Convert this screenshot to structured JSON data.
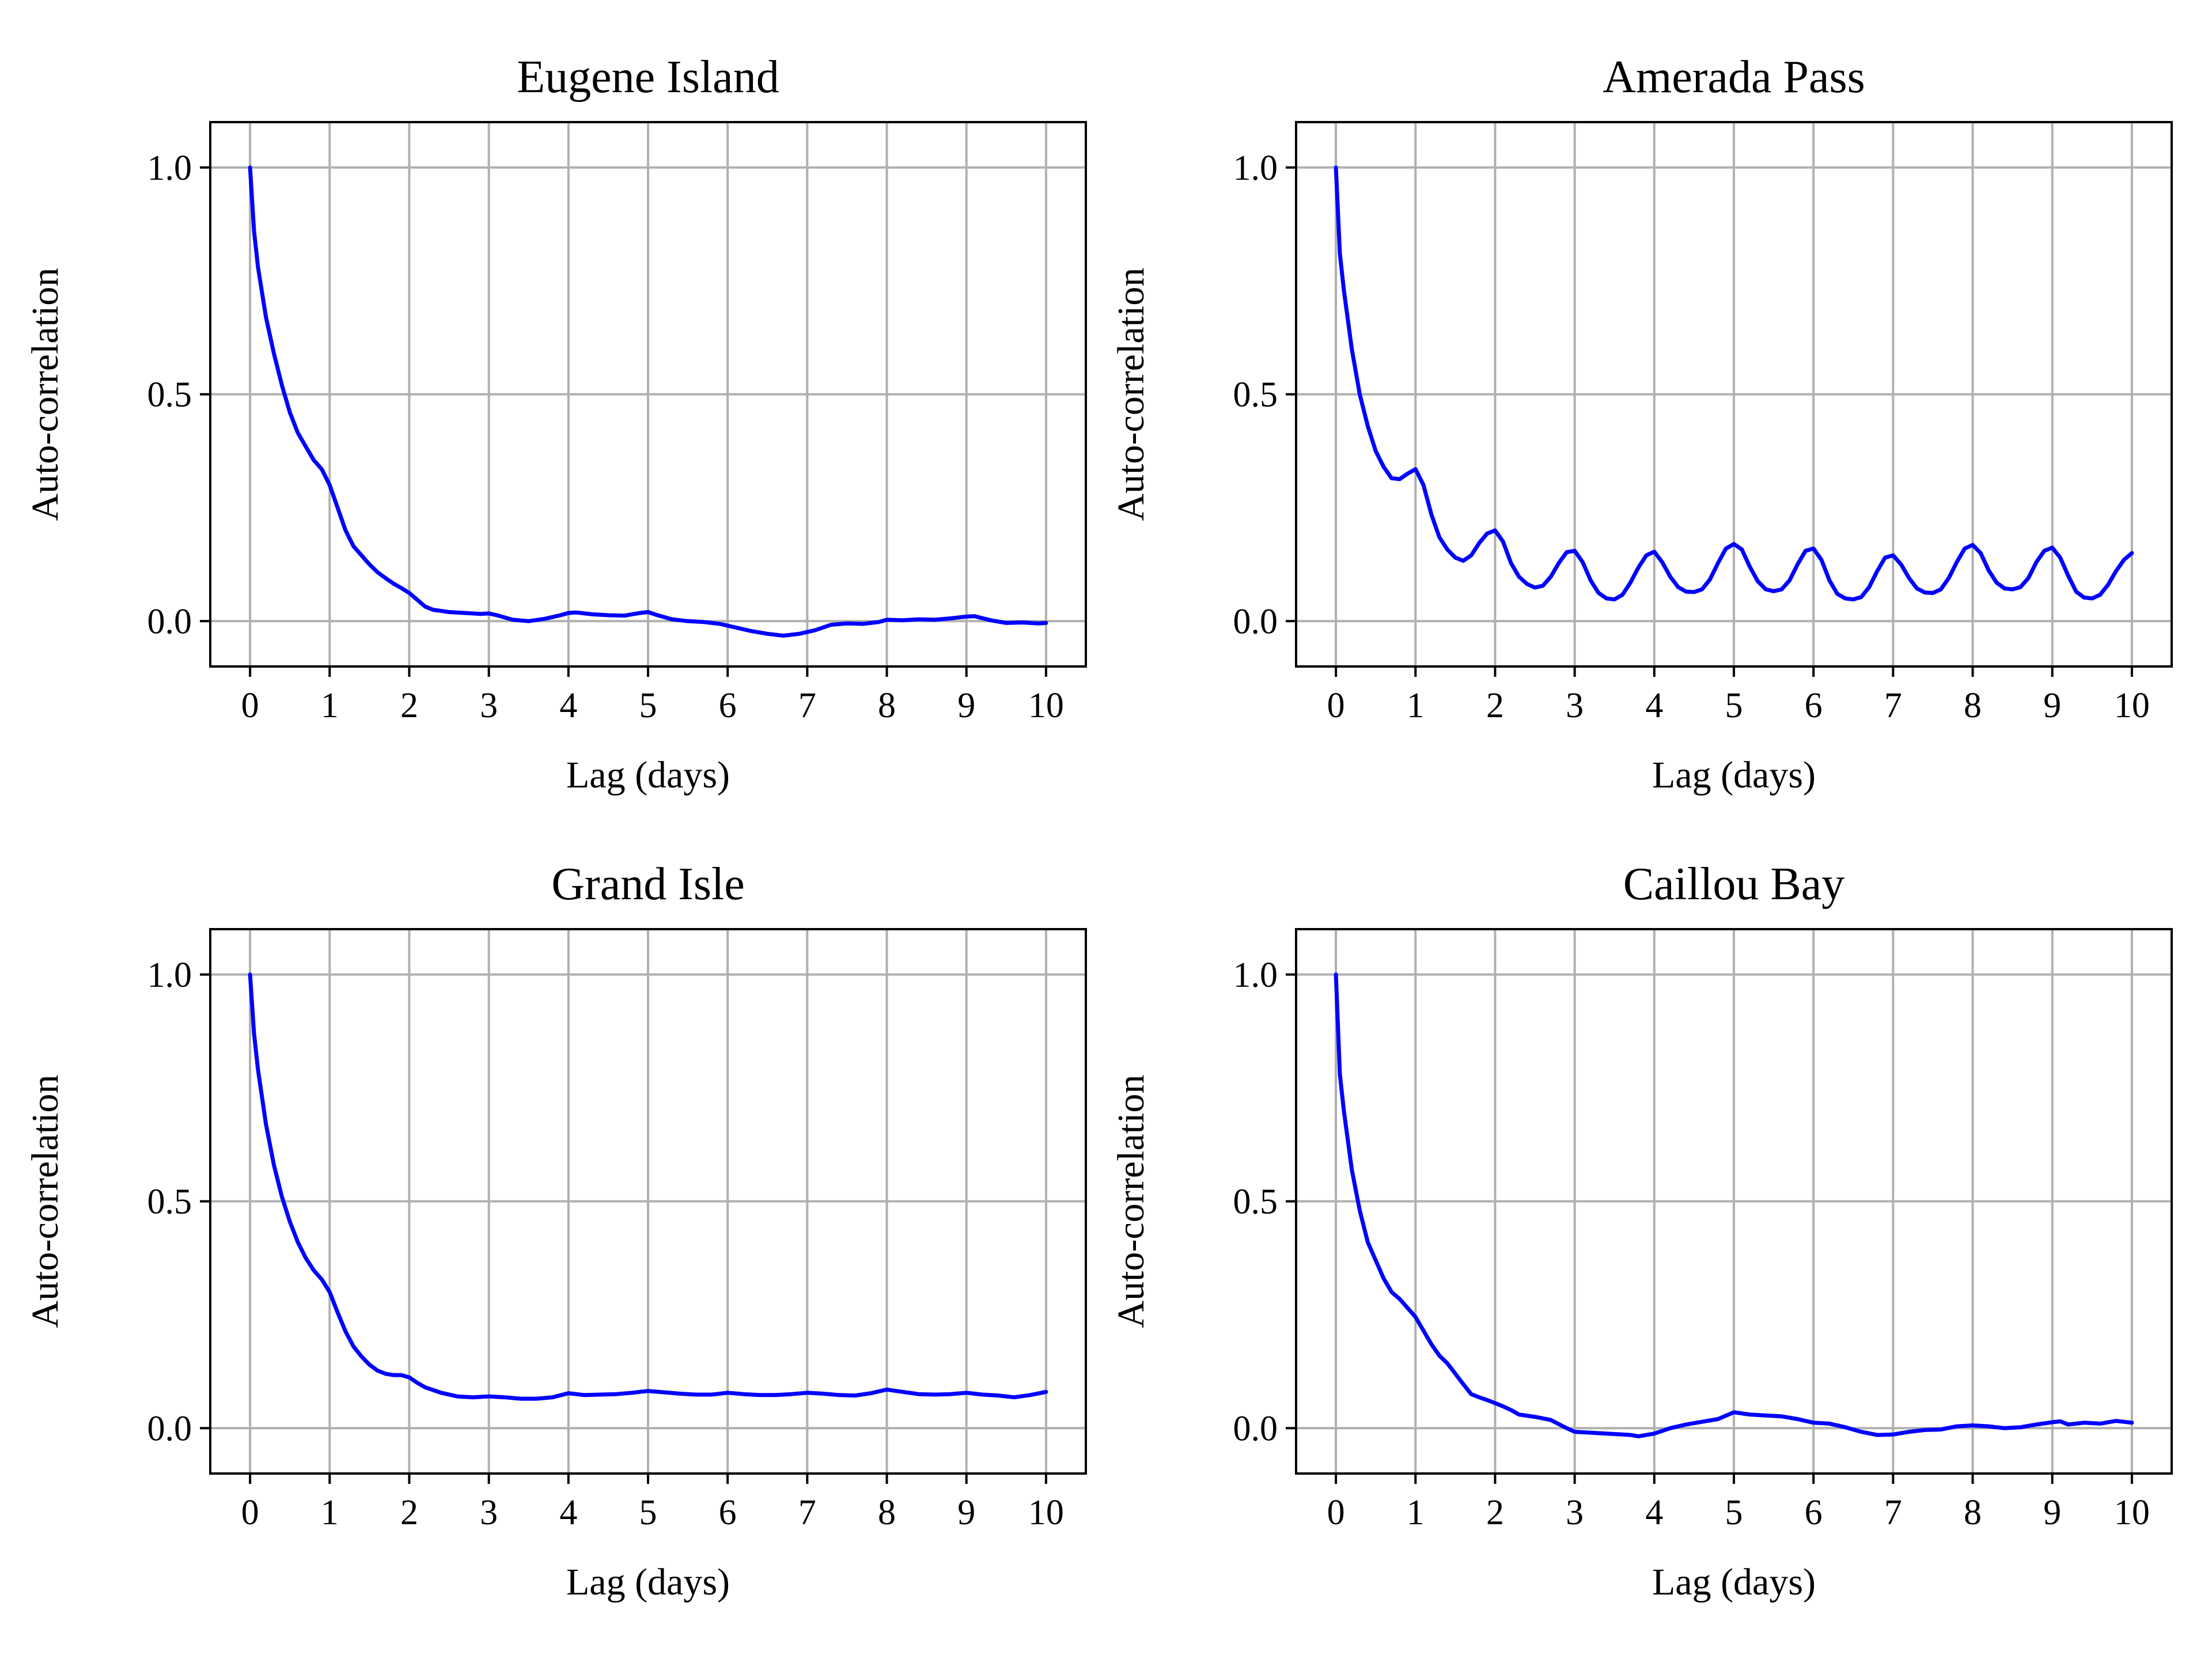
{
  "colors": {
    "line": "#0000ff",
    "grid": "#b0b0b0",
    "axes": "#000000"
  },
  "chart_data": [
    {
      "type": "line",
      "title": "Eugene Island",
      "xlabel": "Lag (days)",
      "ylabel": "Auto-correlation",
      "xlim": [
        -0.5,
        10.5
      ],
      "ylim": [
        -0.1,
        1.1
      ],
      "xticks": [
        0,
        1,
        2,
        3,
        4,
        5,
        6,
        7,
        8,
        9,
        10
      ],
      "yticks": [
        0.0,
        0.5,
        1.0
      ],
      "ytick_labels": [
        "0.0",
        "0.5",
        "1.0"
      ],
      "grid": true,
      "series": [
        {
          "x": [
            0,
            0.05,
            0.1,
            0.2,
            0.3,
            0.4,
            0.5,
            0.6,
            0.7,
            0.8,
            0.9,
            1.0,
            1.1,
            1.2,
            1.3,
            1.4,
            1.5,
            1.6,
            1.7,
            1.8,
            1.9,
            2.0,
            2.1,
            2.2,
            2.3,
            2.5,
            2.7,
            2.9,
            3.0,
            3.1,
            3.3,
            3.5,
            3.7,
            3.9,
            4.0,
            4.1,
            4.3,
            4.5,
            4.7,
            4.9,
            5.0,
            5.1,
            5.3,
            5.5,
            5.7,
            5.9,
            6.1,
            6.3,
            6.5,
            6.7,
            6.9,
            7.1,
            7.3,
            7.5,
            7.7,
            7.9,
            8.0,
            8.2,
            8.4,
            8.6,
            8.8,
            9.0,
            9.1,
            9.3,
            9.5,
            9.7,
            9.9,
            10.0
          ],
          "y": [
            1.0,
            0.86,
            0.78,
            0.67,
            0.59,
            0.52,
            0.46,
            0.415,
            0.385,
            0.355,
            0.335,
            0.3,
            0.25,
            0.2,
            0.165,
            0.145,
            0.125,
            0.108,
            0.095,
            0.083,
            0.073,
            0.062,
            0.047,
            0.032,
            0.025,
            0.02,
            0.018,
            0.016,
            0.017,
            0.013,
            0.003,
            0.0,
            0.005,
            0.013,
            0.018,
            0.019,
            0.015,
            0.013,
            0.012,
            0.018,
            0.02,
            0.014,
            0.004,
            0.0,
            -0.002,
            -0.006,
            -0.014,
            -0.022,
            -0.028,
            -0.032,
            -0.028,
            -0.02,
            -0.008,
            -0.005,
            -0.006,
            -0.002,
            0.003,
            0.002,
            0.004,
            0.003,
            0.006,
            0.01,
            0.011,
            0.002,
            -0.004,
            -0.003,
            -0.005,
            -0.004
          ]
        }
      ]
    },
    {
      "type": "line",
      "title": "Amerada Pass",
      "xlabel": "Lag (days)",
      "ylabel": "Auto-correlation",
      "xlim": [
        -0.5,
        10.5
      ],
      "ylim": [
        -0.1,
        1.1
      ],
      "xticks": [
        0,
        1,
        2,
        3,
        4,
        5,
        6,
        7,
        8,
        9,
        10
      ],
      "yticks": [
        0.0,
        0.5,
        1.0
      ],
      "ytick_labels": [
        "0.0",
        "0.5",
        "1.0"
      ],
      "grid": true,
      "series": [
        {
          "x": [
            0,
            0.05,
            0.1,
            0.2,
            0.3,
            0.4,
            0.5,
            0.6,
            0.7,
            0.8,
            0.9,
            1.0,
            1.1,
            1.2,
            1.3,
            1.4,
            1.5,
            1.6,
            1.7,
            1.8,
            1.9,
            2.0,
            2.1,
            2.2,
            2.3,
            2.4,
            2.5,
            2.6,
            2.7,
            2.8,
            2.9,
            3.0,
            3.1,
            3.2,
            3.3,
            3.4,
            3.5,
            3.6,
            3.7,
            3.8,
            3.9,
            4.0,
            4.1,
            4.2,
            4.3,
            4.4,
            4.5,
            4.6,
            4.7,
            4.8,
            4.9,
            5.0,
            5.1,
            5.2,
            5.3,
            5.4,
            5.5,
            5.6,
            5.7,
            5.8,
            5.9,
            6.0,
            6.1,
            6.2,
            6.3,
            6.4,
            6.5,
            6.6,
            6.7,
            6.8,
            6.9,
            7.0,
            7.1,
            7.2,
            7.3,
            7.4,
            7.5,
            7.6,
            7.7,
            7.8,
            7.9,
            8.0,
            8.1,
            8.2,
            8.3,
            8.4,
            8.5,
            8.6,
            8.7,
            8.8,
            8.9,
            9.0,
            9.1,
            9.2,
            9.3,
            9.4,
            9.5,
            9.6,
            9.7,
            9.8,
            9.9,
            10.0
          ],
          "y": [
            1.0,
            0.81,
            0.73,
            0.6,
            0.5,
            0.43,
            0.375,
            0.34,
            0.315,
            0.313,
            0.325,
            0.335,
            0.3,
            0.235,
            0.185,
            0.158,
            0.14,
            0.133,
            0.145,
            0.172,
            0.193,
            0.2,
            0.175,
            0.128,
            0.098,
            0.082,
            0.074,
            0.078,
            0.098,
            0.128,
            0.152,
            0.155,
            0.13,
            0.09,
            0.062,
            0.05,
            0.048,
            0.058,
            0.085,
            0.118,
            0.145,
            0.153,
            0.13,
            0.098,
            0.075,
            0.065,
            0.064,
            0.07,
            0.092,
            0.128,
            0.16,
            0.17,
            0.158,
            0.12,
            0.088,
            0.07,
            0.066,
            0.07,
            0.09,
            0.125,
            0.155,
            0.16,
            0.135,
            0.09,
            0.06,
            0.05,
            0.048,
            0.053,
            0.075,
            0.11,
            0.14,
            0.145,
            0.125,
            0.095,
            0.072,
            0.063,
            0.062,
            0.07,
            0.095,
            0.13,
            0.16,
            0.168,
            0.15,
            0.112,
            0.085,
            0.072,
            0.07,
            0.075,
            0.095,
            0.13,
            0.155,
            0.162,
            0.14,
            0.1,
            0.065,
            0.052,
            0.05,
            0.058,
            0.08,
            0.11,
            0.135,
            0.15
          ]
        }
      ]
    },
    {
      "type": "line",
      "title": "Grand Isle",
      "xlabel": "Lag (days)",
      "ylabel": "Auto-correlation",
      "xlim": [
        -0.5,
        10.5
      ],
      "ylim": [
        -0.1,
        1.1
      ],
      "xticks": [
        0,
        1,
        2,
        3,
        4,
        5,
        6,
        7,
        8,
        9,
        10
      ],
      "yticks": [
        0.0,
        0.5,
        1.0
      ],
      "ytick_labels": [
        "0.0",
        "0.5",
        "1.0"
      ],
      "grid": true,
      "series": [
        {
          "x": [
            0,
            0.05,
            0.1,
            0.2,
            0.3,
            0.4,
            0.5,
            0.6,
            0.7,
            0.8,
            0.9,
            1.0,
            1.1,
            1.2,
            1.3,
            1.4,
            1.5,
            1.6,
            1.7,
            1.8,
            1.9,
            2.0,
            2.1,
            2.2,
            2.4,
            2.6,
            2.8,
            3.0,
            3.2,
            3.4,
            3.6,
            3.8,
            4.0,
            4.2,
            4.4,
            4.6,
            4.8,
            5.0,
            5.2,
            5.4,
            5.6,
            5.8,
            6.0,
            6.2,
            6.4,
            6.6,
            6.8,
            7.0,
            7.2,
            7.4,
            7.6,
            7.8,
            8.0,
            8.2,
            8.4,
            8.6,
            8.8,
            9.0,
            9.2,
            9.4,
            9.6,
            9.8,
            10.0
          ],
          "y": [
            1.0,
            0.87,
            0.79,
            0.67,
            0.58,
            0.51,
            0.455,
            0.41,
            0.375,
            0.348,
            0.328,
            0.3,
            0.255,
            0.213,
            0.18,
            0.158,
            0.14,
            0.127,
            0.12,
            0.117,
            0.117,
            0.112,
            0.1,
            0.09,
            0.078,
            0.07,
            0.068,
            0.07,
            0.068,
            0.065,
            0.065,
            0.068,
            0.077,
            0.073,
            0.074,
            0.075,
            0.078,
            0.082,
            0.079,
            0.076,
            0.074,
            0.074,
            0.078,
            0.075,
            0.073,
            0.073,
            0.075,
            0.078,
            0.076,
            0.073,
            0.072,
            0.077,
            0.085,
            0.08,
            0.075,
            0.074,
            0.075,
            0.078,
            0.074,
            0.072,
            0.068,
            0.073,
            0.08
          ]
        }
      ]
    },
    {
      "type": "line",
      "title": "Caillou Bay",
      "xlabel": "Lag (days)",
      "ylabel": "Auto-correlation",
      "xlim": [
        -0.5,
        10.5
      ],
      "ylim": [
        -0.1,
        1.1
      ],
      "xticks": [
        0,
        1,
        2,
        3,
        4,
        5,
        6,
        7,
        8,
        9,
        10
      ],
      "yticks": [
        0.0,
        0.5,
        1.0
      ],
      "ytick_labels": [
        "0.0",
        "0.5",
        "1.0"
      ],
      "grid": true,
      "series": [
        {
          "x": [
            0,
            0.05,
            0.1,
            0.2,
            0.3,
            0.4,
            0.5,
            0.6,
            0.7,
            0.8,
            0.9,
            1.0,
            1.1,
            1.2,
            1.3,
            1.4,
            1.5,
            1.6,
            1.7,
            1.8,
            1.9,
            2.0,
            2.1,
            2.2,
            2.3,
            2.5,
            2.7,
            2.9,
            3.0,
            3.2,
            3.4,
            3.6,
            3.7,
            3.8,
            4.0,
            4.2,
            4.4,
            4.6,
            4.8,
            5.0,
            5.2,
            5.4,
            5.6,
            5.8,
            6.0,
            6.2,
            6.4,
            6.6,
            6.8,
            7.0,
            7.2,
            7.4,
            7.6,
            7.8,
            8.0,
            8.2,
            8.4,
            8.6,
            8.8,
            9.0,
            9.1,
            9.2,
            9.4,
            9.6,
            9.8,
            10.0
          ],
          "y": [
            1.0,
            0.78,
            0.7,
            0.57,
            0.48,
            0.41,
            0.37,
            0.33,
            0.3,
            0.285,
            0.265,
            0.245,
            0.215,
            0.185,
            0.16,
            0.143,
            0.12,
            0.097,
            0.075,
            0.068,
            0.062,
            0.055,
            0.048,
            0.04,
            0.03,
            0.025,
            0.018,
            0.0,
            -0.008,
            -0.01,
            -0.012,
            -0.014,
            -0.015,
            -0.018,
            -0.012,
            0.0,
            0.008,
            0.014,
            0.02,
            0.035,
            0.03,
            0.028,
            0.026,
            0.02,
            0.012,
            0.01,
            0.002,
            -0.008,
            -0.015,
            -0.014,
            -0.008,
            -0.004,
            -0.003,
            0.004,
            0.006,
            0.004,
            0.0,
            0.002,
            0.008,
            0.013,
            0.015,
            0.008,
            0.012,
            0.01,
            0.016,
            0.012
          ]
        }
      ]
    }
  ]
}
